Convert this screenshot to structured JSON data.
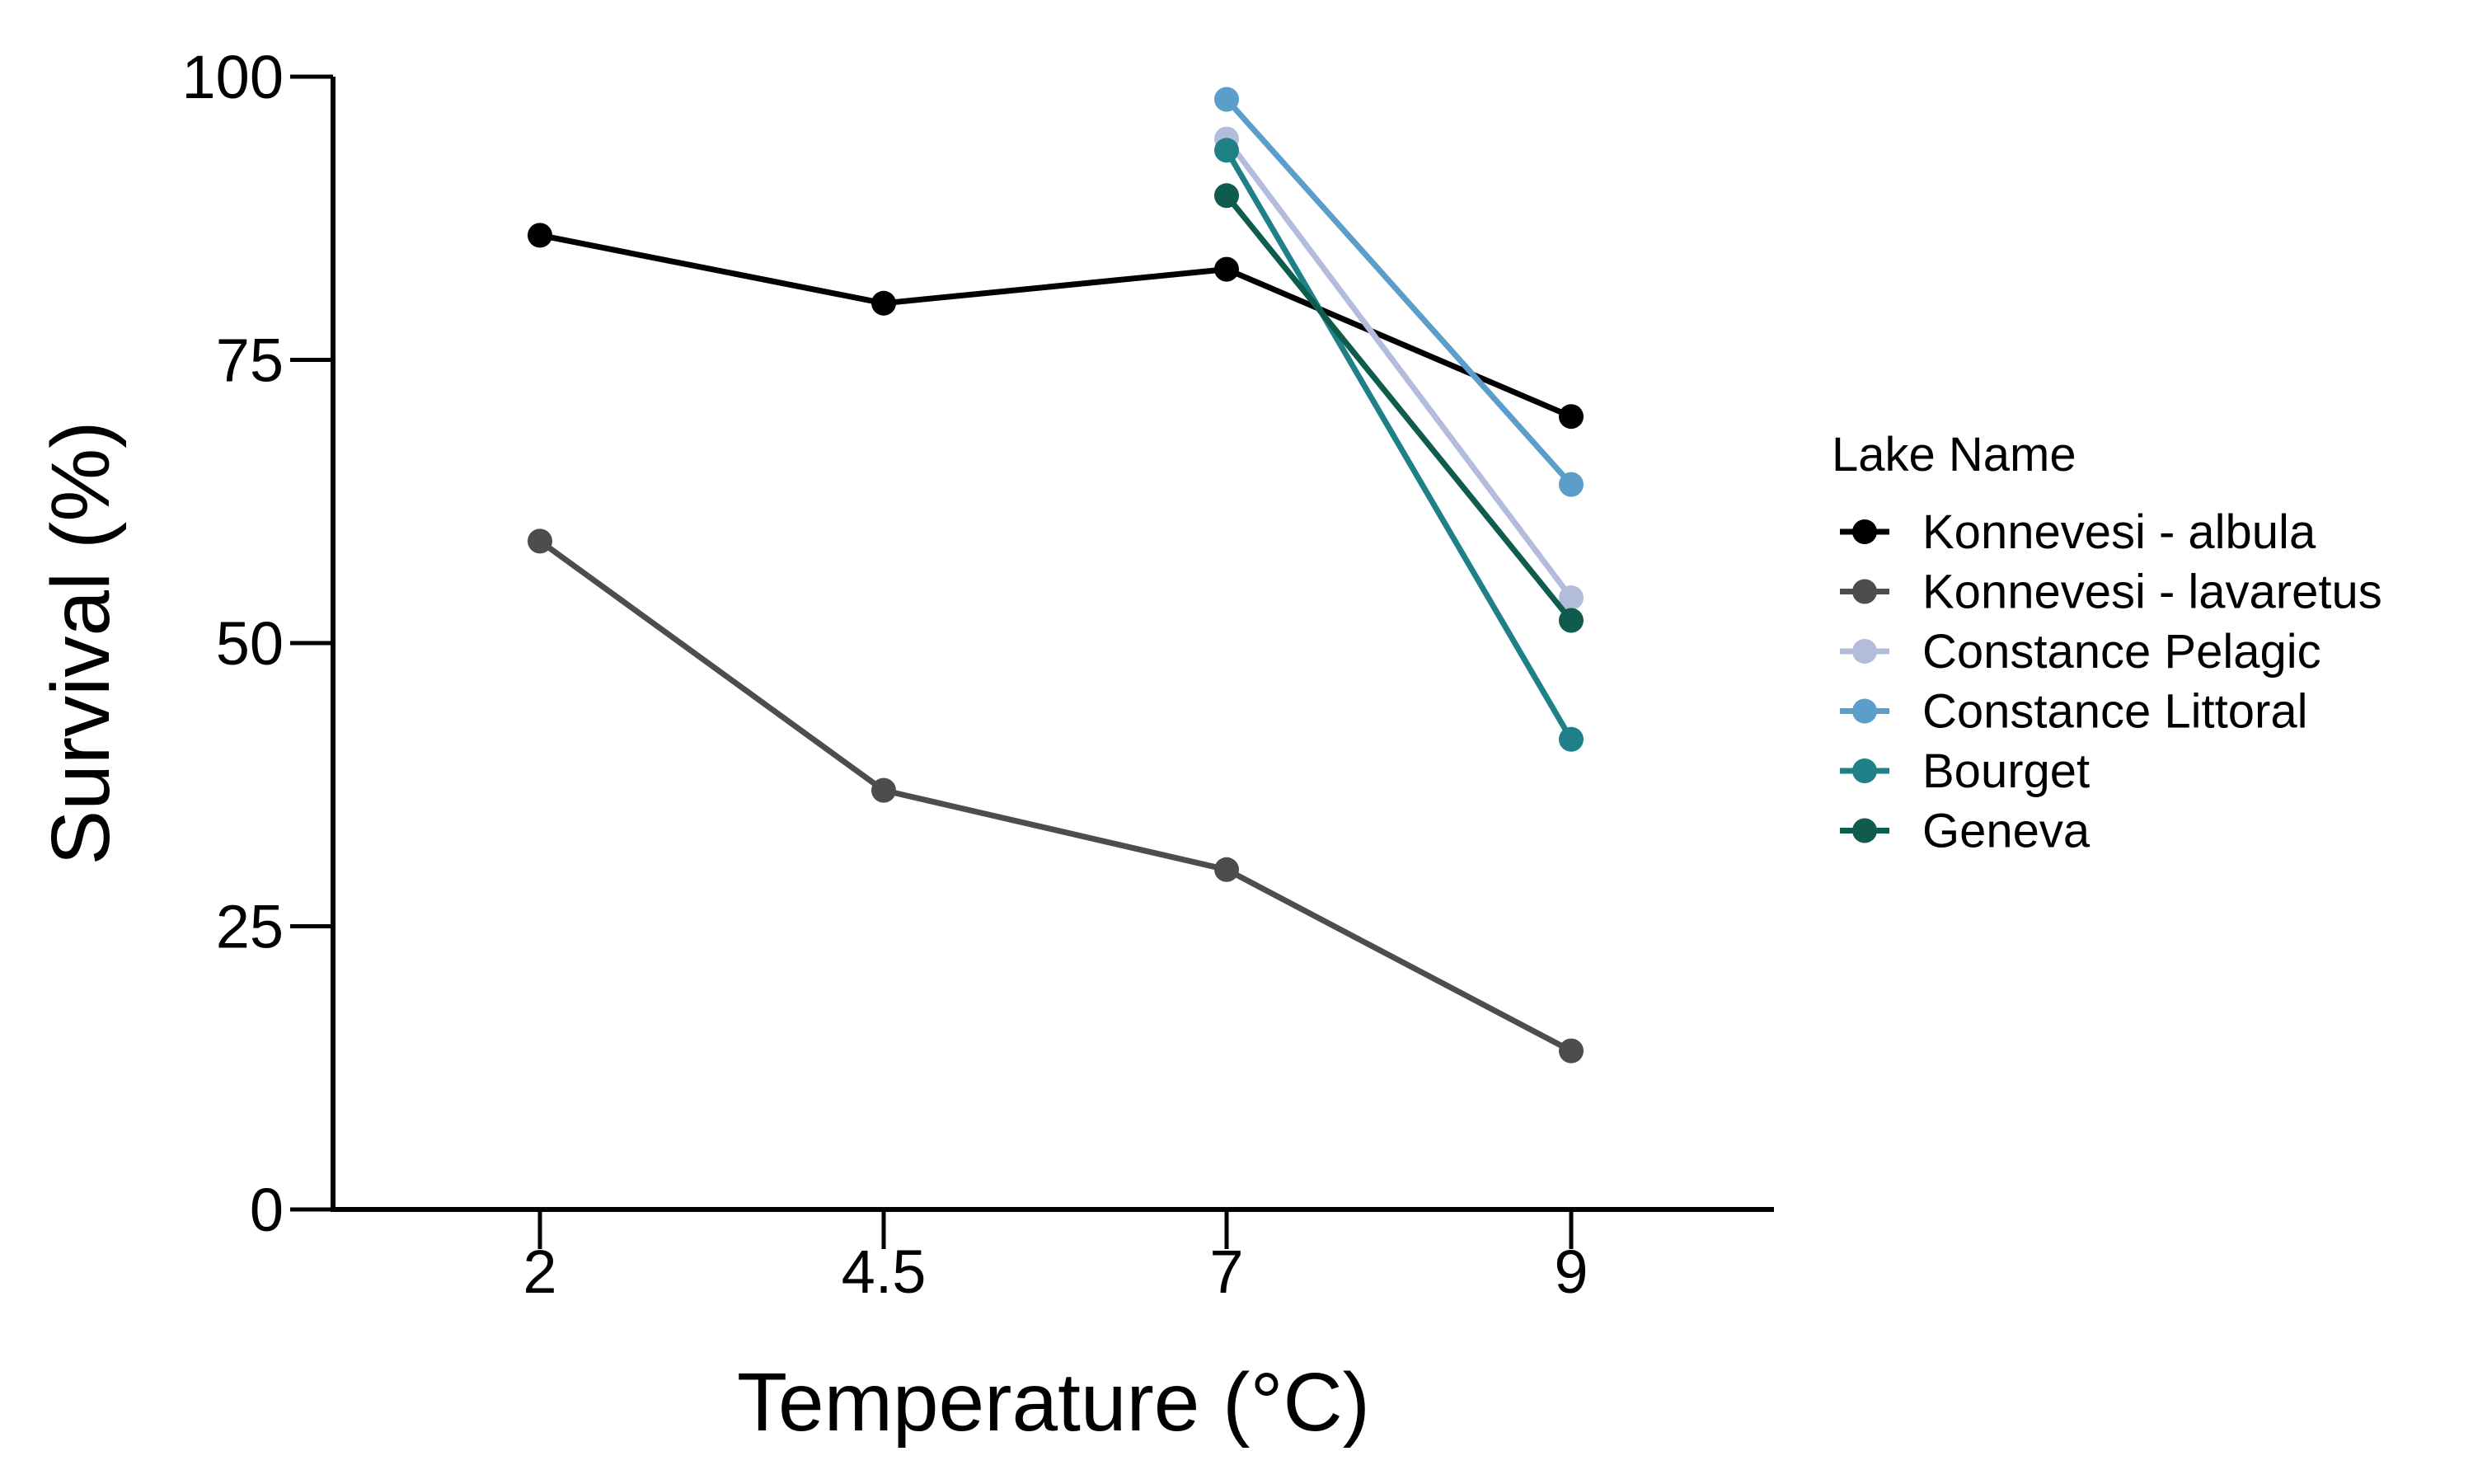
{
  "chart_data": {
    "type": "line",
    "title": "",
    "xlabel": "Temperature (°C)",
    "ylabel": "Survival (%)",
    "x_categories": [
      "2",
      "4.5",
      "7",
      "9"
    ],
    "ylim": [
      0,
      100
    ],
    "yticks": [
      "0",
      "25",
      "50",
      "75",
      "100"
    ],
    "grid": false,
    "legend": {
      "title": "Lake Name",
      "placement": "right"
    },
    "series": [
      {
        "name": "Konnevesi - albula",
        "color": "#000000",
        "x": [
          "2",
          "4.5",
          "7",
          "9"
        ],
        "values": [
          86,
          80,
          83,
          70
        ]
      },
      {
        "name": "Konnevesi - lavaretus",
        "color": "#4d4d4d",
        "x": [
          "2",
          "4.5",
          "7",
          "9"
        ],
        "values": [
          59,
          37,
          30,
          14
        ]
      },
      {
        "name": "Constance Pelagic",
        "color": "#b3bddb",
        "x": [
          "7",
          "9"
        ],
        "values": [
          94.5,
          54
        ]
      },
      {
        "name": "Constance Littoral",
        "color": "#5b9ec9",
        "x": [
          "7",
          "9"
        ],
        "values": [
          98,
          64
        ]
      },
      {
        "name": "Bourget",
        "color": "#1f8088",
        "x": [
          "7",
          "9"
        ],
        "values": [
          93.5,
          41.5
        ]
      },
      {
        "name": "Geneva",
        "color": "#0f5c4e",
        "x": [
          "7",
          "9"
        ],
        "values": [
          89.5,
          52
        ]
      }
    ]
  }
}
